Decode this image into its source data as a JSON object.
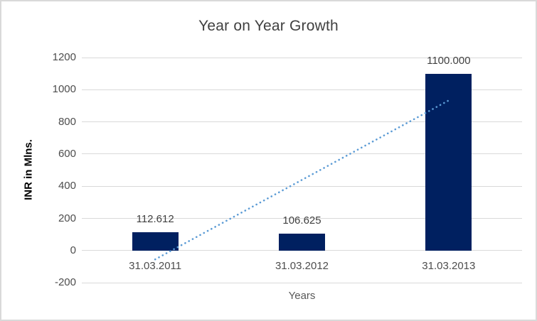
{
  "chart_data": {
    "type": "bar",
    "title": "Year on Year Growth",
    "categories": [
      "31.03.2011",
      "31.03.2012",
      "31.03.2013"
    ],
    "values": [
      112.612,
      106.625,
      1100.0
    ],
    "data_labels": [
      "112.612",
      "106.625",
      "1100.000"
    ],
    "xlabel": "Years",
    "ylabel": "INR in Mlns.",
    "ylim": [
      -200,
      1200
    ],
    "yticks": [
      1200,
      1000,
      800,
      600,
      400,
      200,
      0,
      -200
    ],
    "grid": true,
    "legend_position": "none",
    "trendline": {
      "type": "linear",
      "style": "dotted"
    }
  },
  "colors": {
    "background": "#FFFFFF",
    "frame_border": "#D9D9D9",
    "bar": "#002060",
    "trendline": "#5B9BD5",
    "gridline": "#D9D9D9",
    "title_text": "#404040",
    "tick_text": "#4D4D4D",
    "category_text": "#4D4D4D",
    "data_label_text": "#404040",
    "axis_title_text": "#595959",
    "y_axis_title_text": "#000000"
  }
}
